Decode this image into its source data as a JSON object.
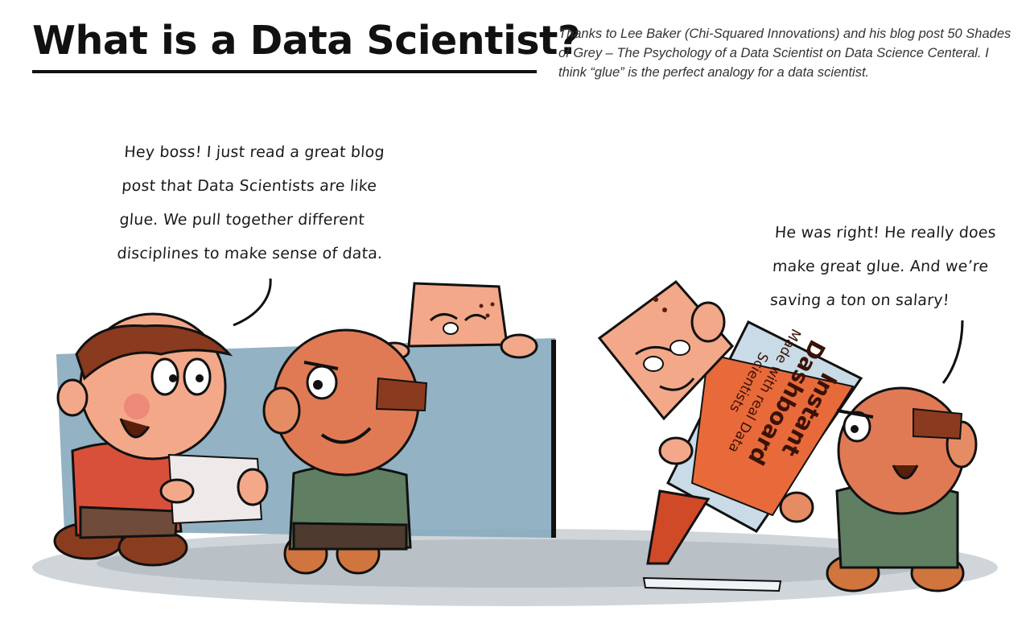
{
  "header": {
    "title": "What is a Data Scientist?",
    "caption": "Thanks to Lee Baker (Chi-Squared Innovations) and his blog post 50 Shades of Grey – The Psychology of a Data Scientist on Data Science Centeral. I think “glue” is the perfect analogy for a data scientist."
  },
  "comic": {
    "speech_left": "Hey boss! I just read a great blog post that Data Scientists are like glue. We pull together different disciplines to make sense of data.",
    "speech_right": "He was right! He really does make great glue. And we’re saving a ton on salary!",
    "jar_label_main": "Instant Dashboard",
    "jar_label_sub": "Made with real Data Scientists"
  },
  "colors": {
    "skin": "#f2a889",
    "skin_shadow": "#e07a55",
    "red_shirt": "#d9503a",
    "green_shirt": "#5f7e62",
    "boots": "#8a3d1e",
    "cubicle": "#8fb1c4",
    "floor": "#9aa7ae",
    "jar": "#c8dbe6",
    "jar_label": "#e86a3a",
    "ink": "#111111"
  }
}
